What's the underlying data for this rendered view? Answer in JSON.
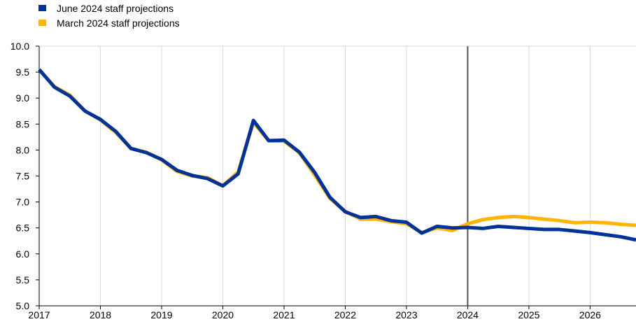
{
  "chart_data": {
    "type": "line",
    "title": "",
    "xlabel": "",
    "ylabel": "",
    "xlim": [
      2017,
      2026.75
    ],
    "ylim": [
      5.0,
      10.0
    ],
    "yticks": [
      5.0,
      5.5,
      6.0,
      6.5,
      7.0,
      7.5,
      8.0,
      8.5,
      9.0,
      9.5,
      10.0
    ],
    "ytick_labels": [
      "5.0",
      "5.5",
      "6.0",
      "6.5",
      "7.0",
      "7.5",
      "8.0",
      "8.5",
      "9.0",
      "9.5",
      "10.0"
    ],
    "xticks": [
      2017,
      2018,
      2019,
      2020,
      2021,
      2022,
      2023,
      2024,
      2025,
      2026
    ],
    "xtick_labels": [
      "2017",
      "2018",
      "2019",
      "2020",
      "2021",
      "2022",
      "2023",
      "2024",
      "2025",
      "2026"
    ],
    "grid": "vertical",
    "legend_position": "top-left",
    "vline_x": 2024,
    "series": [
      {
        "name": "June 2024 staff projections",
        "color": "#003299",
        "x": [
          2017,
          2017.25,
          2017.5,
          2017.75,
          2018,
          2018.25,
          2018.5,
          2018.75,
          2019,
          2019.25,
          2019.5,
          2019.75,
          2020,
          2020.25,
          2020.5,
          2020.75,
          2021,
          2021.25,
          2021.5,
          2021.75,
          2022,
          2022.25,
          2022.5,
          2022.75,
          2023,
          2023.25,
          2023.5,
          2023.75,
          2024,
          2024.25,
          2024.5,
          2024.75,
          2025,
          2025.25,
          2025.5,
          2025.75,
          2026,
          2026.25,
          2026.5,
          2026.75
        ],
        "values": [
          9.55,
          9.21,
          9.04,
          8.75,
          8.59,
          8.36,
          8.03,
          7.95,
          7.82,
          7.61,
          7.51,
          7.45,
          7.31,
          7.54,
          8.57,
          8.18,
          8.19,
          7.96,
          7.57,
          7.09,
          6.81,
          6.7,
          6.72,
          6.64,
          6.61,
          6.4,
          6.53,
          6.5,
          6.51,
          6.49,
          6.53,
          6.51,
          6.49,
          6.47,
          6.47,
          6.44,
          6.41,
          6.37,
          6.33,
          6.27
        ]
      },
      {
        "name": "March 2024 staff projections",
        "color": "#FFB400",
        "x": [
          2017,
          2017.25,
          2017.5,
          2017.75,
          2018,
          2018.25,
          2018.5,
          2018.75,
          2019,
          2019.25,
          2019.5,
          2019.75,
          2020,
          2020.25,
          2020.5,
          2020.75,
          2021,
          2021.25,
          2021.5,
          2021.75,
          2022,
          2022.25,
          2022.5,
          2022.75,
          2023,
          2023.25,
          2023.5,
          2023.75,
          2024,
          2024.25,
          2024.5,
          2024.75,
          2025,
          2025.25,
          2025.5,
          2025.75,
          2026,
          2026.25,
          2026.5,
          2026.75
        ],
        "values": [
          9.55,
          9.22,
          9.06,
          8.75,
          8.58,
          8.34,
          8.03,
          7.96,
          7.81,
          7.59,
          7.5,
          7.47,
          7.31,
          7.58,
          8.53,
          8.18,
          8.17,
          7.95,
          7.52,
          7.07,
          6.82,
          6.67,
          6.67,
          6.62,
          6.58,
          6.41,
          6.5,
          6.45,
          6.58,
          6.66,
          6.7,
          6.72,
          6.7,
          6.67,
          6.64,
          6.6,
          6.61,
          6.6,
          6.57,
          6.55
        ]
      }
    ]
  }
}
